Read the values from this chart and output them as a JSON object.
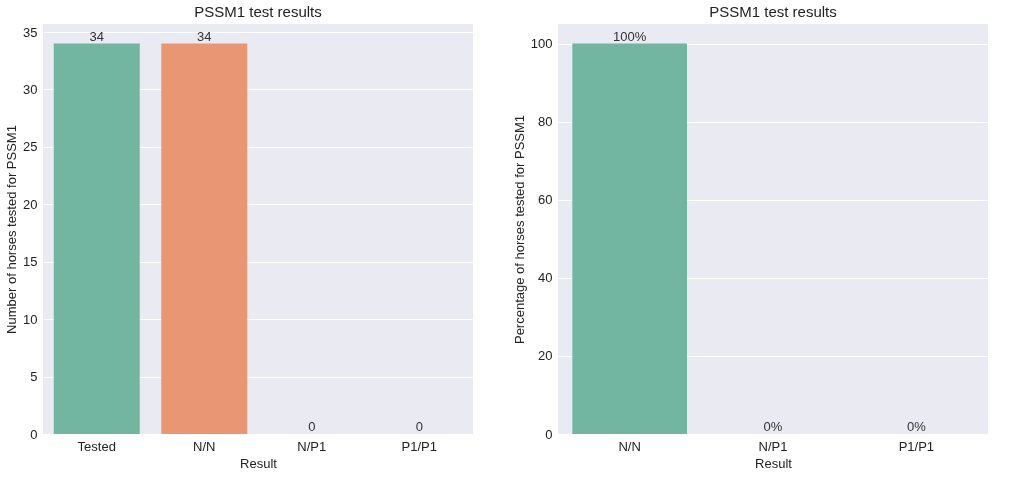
{
  "chart_data": [
    {
      "type": "bar",
      "title": "PSSM1 test results",
      "xlabel": "Result",
      "ylabel": "Number of horses tested for PSSM1",
      "categories": [
        "Tested",
        "N/N",
        "N/P1",
        "P1/P1"
      ],
      "values": [
        34,
        34,
        0,
        0
      ],
      "colors": [
        "#72b6a1",
        "#e99675",
        "#8da0cb",
        "#e78ac3"
      ],
      "ylim": [
        0,
        35.7
      ],
      "yticks": [
        0,
        5,
        10,
        15,
        20,
        25,
        30,
        35
      ],
      "grid": "y",
      "data_labels": true
    },
    {
      "type": "bar",
      "title": "PSSM1 test results",
      "xlabel": "Result",
      "ylabel": "Percentage of horses tested for PSSM1",
      "categories": [
        "N/N",
        "N/P1",
        "P1/P1"
      ],
      "values": [
        100,
        0,
        0
      ],
      "colors": [
        "#72b6a1",
        "#e99675",
        "#8da0cb"
      ],
      "ylim": [
        0,
        105
      ],
      "yticks": [
        0,
        20,
        40,
        60,
        80,
        100
      ],
      "grid": "y",
      "value_labels": [
        "100%",
        "0%",
        "0%"
      ]
    }
  ]
}
